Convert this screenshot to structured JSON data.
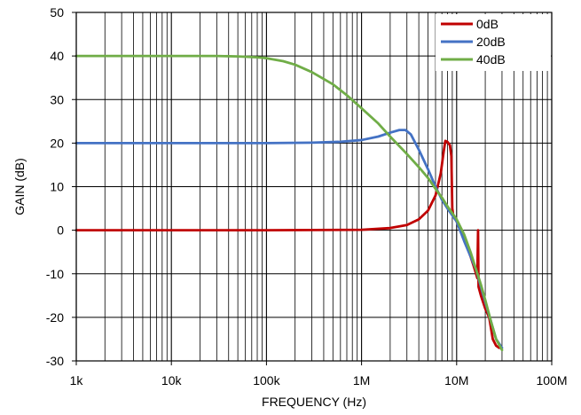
{
  "chart_data": {
    "type": "line",
    "title": "",
    "xlabel": "FREQUENCY (Hz)",
    "ylabel": "GAIN (dB)",
    "x_scale": "log",
    "xlim": [
      1000,
      100000000
    ],
    "ylim": [
      -30,
      50
    ],
    "x_ticks": [
      1000,
      10000,
      100000,
      1000000,
      10000000,
      100000000
    ],
    "x_tick_labels": [
      "1k",
      "10k",
      "100k",
      "1M",
      "10M",
      "100M"
    ],
    "y_ticks": [
      50,
      40,
      30,
      20,
      10,
      0,
      -10,
      -20,
      -30
    ],
    "y_tick_labels": [
      "50",
      "40",
      "30",
      "20",
      "10",
      "0",
      "-10",
      "-20",
      "-30"
    ],
    "grid": true,
    "legend_position": "top-right",
    "series": [
      {
        "name": "0dB",
        "color": "#c00000",
        "points": [
          [
            1000,
            0
          ],
          [
            100000,
            0
          ],
          [
            1000000,
            0.1
          ],
          [
            2000000,
            0.5
          ],
          [
            3000000,
            1.2
          ],
          [
            4000000,
            2.5
          ],
          [
            5000000,
            4.5
          ],
          [
            6000000,
            8
          ],
          [
            6800000,
            13
          ],
          [
            7300000,
            18
          ],
          [
            7600000,
            20.5
          ],
          [
            8000000,
            20.3
          ],
          [
            8500000,
            19.5
          ],
          [
            8800000,
            17
          ],
          [
            9000000,
            5
          ],
          [
            9200000,
            3.5
          ],
          [
            10000000,
            2
          ],
          [
            11000000,
            0
          ],
          [
            12000000,
            -2
          ],
          [
            13000000,
            -4
          ],
          [
            14000000,
            -6
          ],
          [
            15000000,
            -8
          ],
          [
            16000000,
            -10
          ],
          [
            16500000,
            -11
          ],
          [
            16800000,
            0
          ],
          [
            17000000,
            -13
          ],
          [
            18000000,
            -15
          ],
          [
            20000000,
            -18
          ],
          [
            22000000,
            -20
          ],
          [
            24000000,
            -25
          ],
          [
            26000000,
            -26.5
          ],
          [
            28000000,
            -27
          ]
        ]
      },
      {
        "name": "20dB",
        "color": "#4472c4",
        "points": [
          [
            1000,
            20
          ],
          [
            100000,
            20
          ],
          [
            300000,
            20.1
          ],
          [
            600000,
            20.3
          ],
          [
            1000000,
            20.7
          ],
          [
            1500000,
            21.5
          ],
          [
            2000000,
            22.4
          ],
          [
            2500000,
            23
          ],
          [
            2900000,
            23
          ],
          [
            3300000,
            22
          ],
          [
            4000000,
            18.5
          ],
          [
            5000000,
            14
          ],
          [
            6000000,
            10
          ],
          [
            7000000,
            7
          ],
          [
            8000000,
            5
          ],
          [
            10000000,
            2
          ],
          [
            12000000,
            -2.5
          ],
          [
            14000000,
            -6
          ],
          [
            16000000,
            -9
          ],
          [
            18000000,
            -13
          ],
          [
            20000000,
            -16.5
          ],
          [
            23000000,
            -21
          ],
          [
            26000000,
            -25
          ],
          [
            30000000,
            -27
          ]
        ]
      },
      {
        "name": "40dB",
        "color": "#70ad47",
        "points": [
          [
            1000,
            40
          ],
          [
            30000,
            40
          ],
          [
            50000,
            39.9
          ],
          [
            80000,
            39.7
          ],
          [
            100000,
            39.5
          ],
          [
            150000,
            38.8
          ],
          [
            200000,
            38
          ],
          [
            300000,
            36.3
          ],
          [
            500000,
            33.5
          ],
          [
            700000,
            31
          ],
          [
            1000000,
            28
          ],
          [
            1500000,
            24.5
          ],
          [
            2000000,
            21.5
          ],
          [
            3000000,
            17.5
          ],
          [
            4000000,
            14.5
          ],
          [
            5000000,
            12
          ],
          [
            6000000,
            9.5
          ],
          [
            7000000,
            7.5
          ],
          [
            8000000,
            5.5
          ],
          [
            10000000,
            2.5
          ],
          [
            12000000,
            -1
          ],
          [
            14000000,
            -5
          ],
          [
            16000000,
            -9
          ],
          [
            18000000,
            -12.5
          ],
          [
            20000000,
            -16
          ],
          [
            23000000,
            -21
          ],
          [
            26000000,
            -25
          ],
          [
            30000000,
            -27.5
          ]
        ]
      }
    ]
  }
}
